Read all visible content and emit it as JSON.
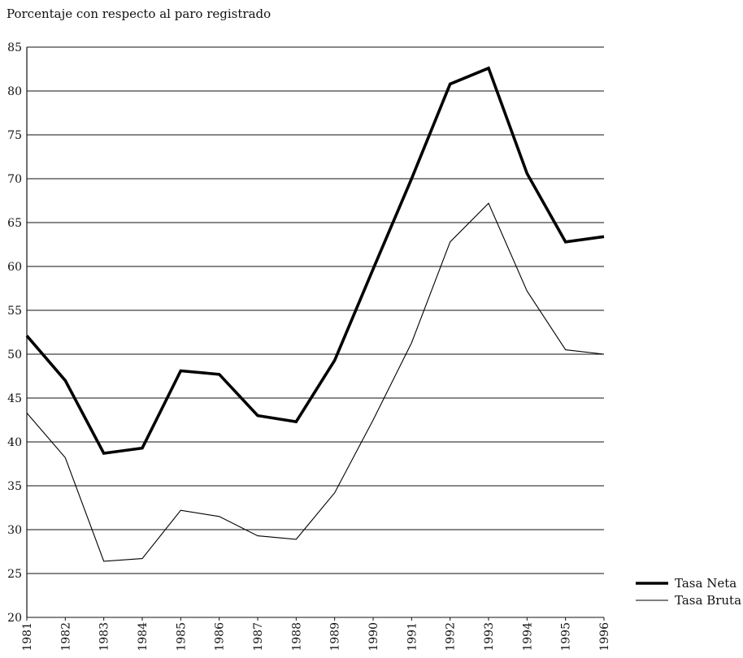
{
  "chart_data": {
    "type": "line",
    "title": "Porcentaje con respecto al paro registrado",
    "xlabel": "",
    "ylabel": "",
    "x": [
      "1981",
      "1982",
      "1983",
      "1984",
      "1985",
      "1986",
      "1987",
      "1988",
      "1989",
      "1990",
      "1991",
      "1992",
      "1993",
      "1994",
      "1995",
      "1996"
    ],
    "ylim": [
      20,
      85
    ],
    "yticks": [
      20,
      25,
      30,
      35,
      40,
      45,
      50,
      55,
      60,
      65,
      70,
      75,
      80,
      85
    ],
    "grid": true,
    "legend_position": "bottom-right",
    "series": [
      {
        "name": "Tasa Neta",
        "style": "thick",
        "color": "#000000",
        "values": [
          52.1,
          47.0,
          38.7,
          39.3,
          48.1,
          47.7,
          43.0,
          42.3,
          49.3,
          59.7,
          70.0,
          80.8,
          82.6,
          70.6,
          62.8,
          63.4
        ]
      },
      {
        "name": "Tasa Bruta",
        "style": "thin",
        "color": "#000000",
        "values": [
          43.3,
          38.2,
          26.4,
          26.7,
          32.2,
          31.5,
          29.3,
          28.9,
          34.2,
          42.5,
          51.3,
          62.8,
          67.2,
          57.2,
          50.5,
          50.0
        ]
      }
    ]
  }
}
